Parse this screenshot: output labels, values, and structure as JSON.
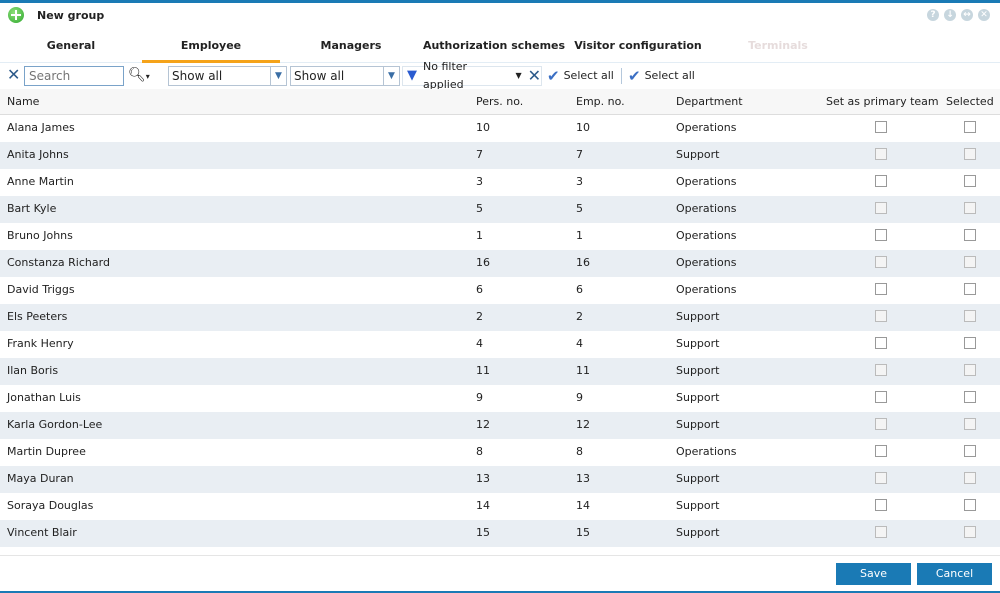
{
  "window": {
    "title": "New group",
    "buttons": [
      "?",
      "↓",
      "↔",
      "✕"
    ]
  },
  "tabs": [
    {
      "label": "General"
    },
    {
      "label": "Employee",
      "active": true
    },
    {
      "label": "Managers"
    },
    {
      "label": "Authorization schemes"
    },
    {
      "label": "Visitor configuration"
    },
    {
      "label": "Terminals",
      "disabled": true
    }
  ],
  "toolbar": {
    "search_placeholder": "Search",
    "filter1": "Show all",
    "filter2": "Show all",
    "filter_label": "No filter applied",
    "select_all_1": "Select all",
    "select_all_2": "Select all"
  },
  "columns": [
    "Name",
    "Pers. no.",
    "Emp. no.",
    "Department",
    "Set as primary team",
    "Selected"
  ],
  "rows": [
    [
      "Alana James",
      "10",
      "10",
      "Operations"
    ],
    [
      "Anita Johns",
      "7",
      "7",
      "Support"
    ],
    [
      "Anne Martin",
      "3",
      "3",
      "Operations"
    ],
    [
      "Bart Kyle",
      "5",
      "5",
      "Operations"
    ],
    [
      "Bruno Johns",
      "1",
      "1",
      "Operations"
    ],
    [
      "Constanza Richard",
      "16",
      "16",
      "Operations"
    ],
    [
      "David Triggs",
      "6",
      "6",
      "Operations"
    ],
    [
      "Els Peeters",
      "2",
      "2",
      "Support"
    ],
    [
      "Frank Henry",
      "4",
      "4",
      "Support"
    ],
    [
      "Ilan Boris",
      "11",
      "11",
      "Support"
    ],
    [
      "Jonathan Luis",
      "9",
      "9",
      "Support"
    ],
    [
      "Karla Gordon-Lee",
      "12",
      "12",
      "Support"
    ],
    [
      "Martin Dupree",
      "8",
      "8",
      "Operations"
    ],
    [
      "Maya Duran",
      "13",
      "13",
      "Support"
    ],
    [
      "Soraya Douglas",
      "14",
      "14",
      "Support"
    ],
    [
      "Vincent Blair",
      "15",
      "15",
      "Support"
    ]
  ],
  "footer": {
    "save": "Save",
    "cancel": "Cancel"
  },
  "colors": {
    "accent": "#1a7ab5",
    "active_tab": "#f5a31a"
  }
}
